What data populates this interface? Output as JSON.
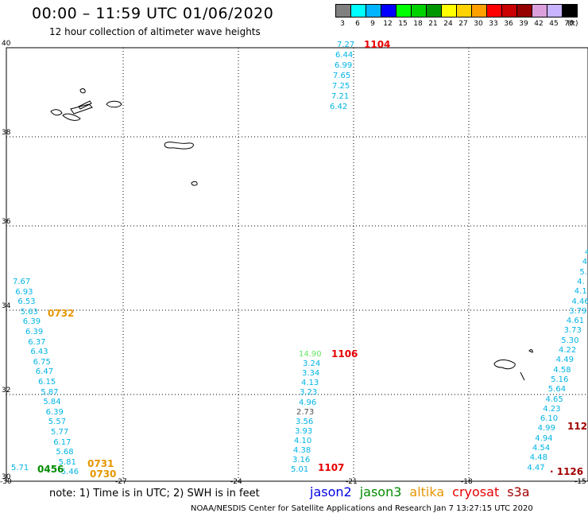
{
  "title": "00:00 – 11:59 UTC 01/06/2020",
  "subtitle": "12 hour collection of altimeter wave heights",
  "legend": {
    "unit": "(ft)",
    "colors": [
      "#808080",
      "#00ffff",
      "#00b4ff",
      "#0000ff",
      "#00ff00",
      "#00d200",
      "#009600",
      "#ffff00",
      "#ffd200",
      "#ffa000",
      "#ff0000",
      "#c80000",
      "#960000",
      "#dca0dc",
      "#c8b4ff",
      "#000000"
    ],
    "labels": [
      "3",
      "6",
      "9",
      "12",
      "15",
      "18",
      "21",
      "24",
      "27",
      "30",
      "33",
      "36",
      "39",
      "42",
      "45",
      "70"
    ]
  },
  "axes": {
    "y_labels": [
      "40",
      "38",
      "36",
      "34",
      "32",
      "30"
    ],
    "x_labels": [
      "-30",
      "-27",
      "-24",
      "-21",
      "-18",
      "-15"
    ]
  },
  "track_colors": {
    "cyan": "#00b4e6",
    "red": "#e60000",
    "orange": "#e69600",
    "green": "#008c00",
    "darkred": "#a00000",
    "lightgreen": "#64e664",
    "gray": "#505050"
  },
  "tracks": [
    {
      "id": "track-1104",
      "color": "cyan",
      "values": [
        "7.27",
        "6.44",
        "6.99",
        "7.65",
        "7.25",
        "7.21",
        "6.42"
      ]
    },
    {
      "id": "track-1106",
      "color": "cyan",
      "values": [
        "14.90",
        "3.24",
        "3.34",
        "4.13",
        "3.23",
        "4.96",
        "2.73",
        "3.56",
        "3.93",
        "4.10",
        "4.38",
        "3.16",
        "5.01"
      ]
    },
    {
      "id": "track-west",
      "color": "cyan",
      "values": [
        "7.67",
        "6.93",
        "6.53",
        "5.63",
        "6.39",
        "6.39",
        "6.37",
        "6.43",
        "6.75",
        "6.47",
        "6.15",
        "5.87",
        "5.84",
        "6.39",
        "5.57",
        "5.77",
        "6.17",
        "5.68",
        "5.81",
        "5.46"
      ]
    },
    {
      "id": "track-east",
      "color": "cyan",
      "values": [
        "4",
        "4",
        "5.",
        "4.",
        "4.1",
        "4.46",
        "3.79",
        "4.61",
        "3.73",
        "5.30",
        "4.22",
        "4.49",
        "4.58",
        "5.16",
        "5.64",
        "4.65",
        "4.23",
        "6.10",
        "4.99",
        "4.94",
        "4.54",
        "4.48",
        "4.47"
      ]
    },
    {
      "id": "track-west-extra",
      "color": "cyan",
      "values": [
        "5.71"
      ]
    }
  ],
  "pass_labels": [
    "1104",
    "1106",
    "1107",
    "0732",
    "0731",
    "0730",
    "0456",
    "112",
    "1126"
  ],
  "note": "note:  1) Time is in UTC; 2) SWH is in feet",
  "satellites": [
    {
      "name": "jason2",
      "color": "#0000e6"
    },
    {
      "name": "jason3",
      "color": "#008c00"
    },
    {
      "name": "altika",
      "color": "#e69600"
    },
    {
      "name": "cryosat",
      "color": "#e60000"
    },
    {
      "name": "s3a",
      "color": "#a00000"
    }
  ],
  "footer": "NOAA/NESDIS Center for Satellite Applications and Research    Jan  7 13:27:15 UTC 2020"
}
